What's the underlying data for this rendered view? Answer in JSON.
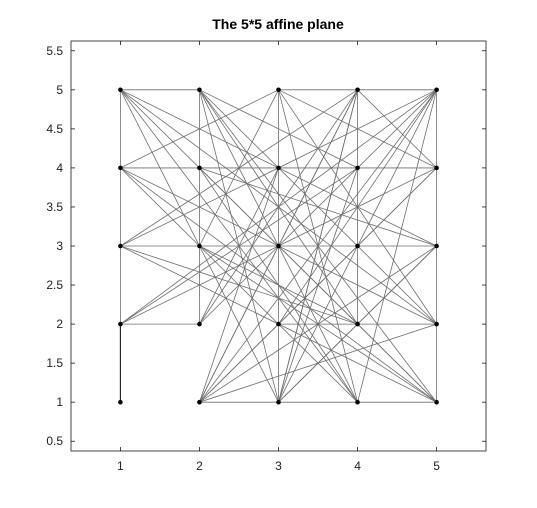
{
  "chart_data": {
    "type": "scatter",
    "title": "The 5*5 affine plane",
    "xlabel": "",
    "ylabel": "",
    "xlim": [
      0.375,
      5.625
    ],
    "ylim": [
      0.375,
      5.625
    ],
    "xticks": [
      1,
      2,
      3,
      4,
      5
    ],
    "xtick_labels": [
      "1",
      "2",
      "3",
      "4",
      "5"
    ],
    "yticks": [
      0.5,
      1,
      1.5,
      2,
      2.5,
      3,
      3.5,
      4,
      4.5,
      5,
      5.5
    ],
    "ytick_labels": [
      "0.5",
      "1",
      "1.5",
      "2",
      "2.5",
      "3",
      "3.5",
      "4",
      "4.5",
      "5",
      "5.5"
    ],
    "grid": false,
    "points": [
      [
        1,
        1
      ],
      [
        1,
        2
      ],
      [
        1,
        3
      ],
      [
        1,
        4
      ],
      [
        1,
        5
      ],
      [
        2,
        1
      ],
      [
        2,
        2
      ],
      [
        2,
        3
      ],
      [
        2,
        4
      ],
      [
        2,
        5
      ],
      [
        3,
        1
      ],
      [
        3,
        2
      ],
      [
        3,
        3
      ],
      [
        3,
        4
      ],
      [
        3,
        5
      ],
      [
        4,
        1
      ],
      [
        4,
        2
      ],
      [
        4,
        3
      ],
      [
        4,
        4
      ],
      [
        4,
        5
      ],
      [
        5,
        1
      ],
      [
        5,
        2
      ],
      [
        5,
        3
      ],
      [
        5,
        4
      ],
      [
        5,
        5
      ]
    ],
    "segments": [
      [
        [
          1,
          1
        ],
        [
          1,
          2
        ],
        "dark"
      ],
      [
        [
          1,
          2
        ],
        [
          1,
          3
        ]
      ],
      [
        [
          1,
          3
        ],
        [
          1,
          4
        ]
      ],
      [
        [
          1,
          4
        ],
        [
          1,
          5
        ]
      ],
      [
        [
          2,
          2
        ],
        [
          2,
          3
        ]
      ],
      [
        [
          2,
          3
        ],
        [
          2,
          4
        ]
      ],
      [
        [
          2,
          4
        ],
        [
          2,
          5
        ]
      ],
      [
        [
          3,
          1
        ],
        [
          3,
          2
        ]
      ],
      [
        [
          3,
          2
        ],
        [
          3,
          3
        ]
      ],
      [
        [
          3,
          3
        ],
        [
          3,
          4
        ]
      ],
      [
        [
          3,
          4
        ],
        [
          3,
          5
        ]
      ],
      [
        [
          4,
          2
        ],
        [
          4,
          3
        ]
      ],
      [
        [
          4,
          3
        ],
        [
          4,
          4
        ]
      ],
      [
        [
          4,
          4
        ],
        [
          4,
          5
        ]
      ],
      [
        [
          5,
          1
        ],
        [
          5,
          2
        ]
      ],
      [
        [
          5,
          2
        ],
        [
          5,
          3
        ]
      ],
      [
        [
          5,
          3
        ],
        [
          5,
          4
        ]
      ],
      [
        [
          5,
          4
        ],
        [
          5,
          5
        ]
      ],
      [
        [
          1,
          5
        ],
        [
          2,
          5
        ]
      ],
      [
        [
          3,
          5
        ],
        [
          4,
          5
        ]
      ],
      [
        [
          4,
          5
        ],
        [
          5,
          5
        ]
      ],
      [
        [
          1,
          4
        ],
        [
          2,
          4
        ]
      ],
      [
        [
          2,
          4
        ],
        [
          3,
          4
        ]
      ],
      [
        [
          3,
          4
        ],
        [
          4,
          4
        ]
      ],
      [
        [
          4,
          4
        ],
        [
          5,
          4
        ]
      ],
      [
        [
          1,
          3
        ],
        [
          2,
          3
        ]
      ],
      [
        [
          2,
          3
        ],
        [
          3,
          3
        ]
      ],
      [
        [
          3,
          3
        ],
        [
          4,
          3
        ]
      ],
      [
        [
          4,
          3
        ],
        [
          5,
          3
        ]
      ],
      [
        [
          1,
          2
        ],
        [
          2,
          2
        ]
      ],
      [
        [
          3,
          2
        ],
        [
          4,
          2
        ]
      ],
      [
        [
          4,
          2
        ],
        [
          5,
          2
        ]
      ],
      [
        [
          2,
          1
        ],
        [
          3,
          1
        ]
      ],
      [
        [
          3,
          1
        ],
        [
          4,
          1
        ]
      ],
      [
        [
          4,
          1
        ],
        [
          5,
          1
        ]
      ],
      [
        [
          1,
          2
        ],
        [
          5,
          5
        ]
      ],
      [
        [
          1,
          3
        ],
        [
          4,
          5
        ]
      ],
      [
        [
          1,
          4
        ],
        [
          3,
          5
        ]
      ],
      [
        [
          2,
          1
        ],
        [
          5,
          4
        ]
      ],
      [
        [
          3,
          1
        ],
        [
          5,
          3
        ]
      ],
      [
        [
          1,
          2
        ],
        [
          5,
          4
        ]
      ],
      [
        [
          1,
          3
        ],
        [
          5,
          5
        ]
      ],
      [
        [
          1,
          4
        ],
        [
          5,
          4
        ]
      ],
      [
        [
          2,
          2
        ],
        [
          5,
          5
        ]
      ],
      [
        [
          1,
          2
        ],
        [
          4,
          4
        ]
      ],
      [
        [
          2,
          1
        ],
        [
          5,
          3
        ]
      ],
      [
        [
          2,
          1
        ],
        [
          4,
          5
        ]
      ],
      [
        [
          3,
          1
        ],
        [
          5,
          5
        ]
      ],
      [
        [
          4,
          1
        ],
        [
          5,
          5
        ]
      ],
      [
        [
          3,
          1
        ],
        [
          4,
          5
        ]
      ],
      [
        [
          1,
          5
        ],
        [
          5,
          3
        ]
      ],
      [
        [
          1,
          5
        ],
        [
          4,
          1
        ]
      ],
      [
        [
          1,
          5
        ],
        [
          3,
          1
        ]
      ],
      [
        [
          1,
          5
        ],
        [
          5,
          2
        ]
      ],
      [
        [
          1,
          5
        ],
        [
          5,
          1
        ]
      ],
      [
        [
          2,
          5
        ],
        [
          5,
          2
        ]
      ],
      [
        [
          2,
          5
        ],
        [
          4,
          1
        ]
      ],
      [
        [
          2,
          5
        ],
        [
          3,
          1
        ]
      ],
      [
        [
          2,
          5
        ],
        [
          4,
          2
        ]
      ],
      [
        [
          2,
          5
        ],
        [
          5,
          1
        ]
      ],
      [
        [
          1,
          4
        ],
        [
          5,
          2
        ]
      ],
      [
        [
          1,
          4
        ],
        [
          4,
          1
        ]
      ],
      [
        [
          1,
          4
        ],
        [
          5,
          1
        ]
      ],
      [
        [
          1,
          3
        ],
        [
          5,
          1
        ]
      ],
      [
        [
          1,
          3
        ],
        [
          4,
          2
        ]
      ],
      [
        [
          2,
          4
        ],
        [
          5,
          1
        ]
      ],
      [
        [
          2,
          4
        ],
        [
          4,
          1
        ]
      ],
      [
        [
          2,
          4
        ],
        [
          5,
          3
        ]
      ],
      [
        [
          2,
          3
        ],
        [
          4,
          2
        ]
      ],
      [
        [
          2,
          3
        ],
        [
          5,
          1
        ]
      ],
      [
        [
          3,
          5
        ],
        [
          5,
          2
        ]
      ],
      [
        [
          4,
          5
        ],
        [
          5,
          4
        ]
      ],
      [
        [
          4,
          5
        ],
        [
          2,
          1
        ]
      ],
      [
        [
          4,
          5
        ],
        [
          3,
          1
        ]
      ],
      [
        [
          2,
          2
        ],
        [
          4,
          5
        ]
      ],
      [
        [
          2,
          2
        ],
        [
          3,
          4
        ]
      ],
      [
        [
          2,
          3
        ],
        [
          3,
          5
        ]
      ],
      [
        [
          2,
          1
        ],
        [
          3,
          4
        ]
      ],
      [
        [
          5,
          5
        ],
        [
          2,
          1
        ]
      ],
      [
        [
          5,
          5
        ],
        [
          3,
          2
        ]
      ],
      [
        [
          5,
          4
        ],
        [
          2,
          1
        ]
      ],
      [
        [
          5,
          3
        ],
        [
          3,
          1
        ]
      ],
      [
        [
          5,
          2
        ],
        [
          2,
          1
        ]
      ],
      [
        [
          3,
          5
        ],
        [
          4,
          1
        ]
      ],
      [
        [
          3,
          5
        ],
        [
          5,
          4
        ]
      ],
      [
        [
          4,
          4
        ],
        [
          3,
          1
        ]
      ],
      [
        [
          4,
          4
        ],
        [
          2,
          5
        ]
      ]
    ]
  }
}
